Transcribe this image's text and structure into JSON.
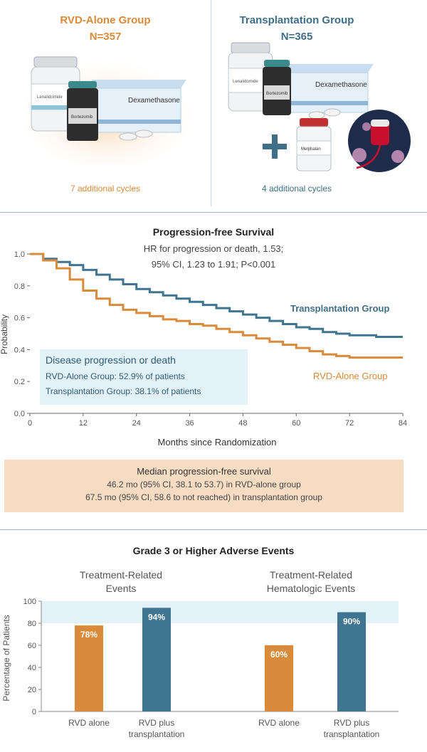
{
  "top": {
    "rvd_group": {
      "title": "RVD-Alone Group",
      "n": "N=357",
      "cycles": "7 additional cycles"
    },
    "tx_group": {
      "title": "Transplantation Group",
      "n": "N=365",
      "cycles": "4 additional cycles"
    },
    "labels": {
      "dexamethasone": "Dexamethasone",
      "lenalidomide": "Lenalidomide",
      "bortezomib": "Bortezomib",
      "melphalan": "Melphalan"
    }
  },
  "pfs": {
    "title": "Progression-free Survival",
    "hr_line1": "HR for progression or death, 1.53;",
    "hr_line2": "95% CI, 1.23 to 1.91; P<0.001",
    "box_title": "Disease progression or death",
    "box_line1": "RVD-Alone Group: 52.9% of patients",
    "box_line2": "Transplantation Group: 38.1% of patients",
    "median_title": "Median progression-free survival",
    "median_line1": "46.2 mo (95% CI, 38.1 to 53.7) in RVD-alone group",
    "median_line2": "67.5 mo (95% CI, 58.6 to not reached) in transplantation group"
  },
  "ae": {
    "title": "Grade 3 or Higher Adverse Events",
    "left_title_1": "Treatment-Related",
    "left_title_2": "Events",
    "right_title_1": "Treatment-Related",
    "right_title_2": "Hematologic Events"
  },
  "colors": {
    "orange": "#d98a3a",
    "blue": "#3f7590",
    "box_blue": "#e3f1f8",
    "box_orange": "#f7dcc4"
  },
  "chart_data": [
    {
      "type": "line",
      "xlabel": "Months since Randomization",
      "ylabel": "Probability",
      "xlim": [
        0,
        84
      ],
      "ylim": [
        0,
        1.0
      ],
      "xticks": [
        "0",
        "12",
        "24",
        "36",
        "48",
        "60",
        "72",
        "84"
      ],
      "yticks": [
        "0.0",
        "0.2",
        "0.4",
        "0.6",
        "0.8",
        "1.0"
      ],
      "series": [
        {
          "name": "Transplantation Group",
          "color": "#3f7590",
          "x": [
            0,
            3,
            6,
            9,
            12,
            15,
            18,
            21,
            24,
            27,
            30,
            33,
            36,
            39,
            42,
            45,
            48,
            51,
            54,
            57,
            60,
            63,
            66,
            69,
            72,
            75,
            78,
            81,
            84
          ],
          "y": [
            1.0,
            0.97,
            0.95,
            0.93,
            0.9,
            0.87,
            0.84,
            0.81,
            0.78,
            0.76,
            0.74,
            0.72,
            0.7,
            0.68,
            0.66,
            0.64,
            0.62,
            0.6,
            0.58,
            0.56,
            0.54,
            0.53,
            0.51,
            0.5,
            0.49,
            0.49,
            0.48,
            0.48,
            0.48
          ]
        },
        {
          "name": "RVD-Alone Group",
          "color": "#d98a3a",
          "x": [
            0,
            3,
            6,
            9,
            12,
            15,
            18,
            21,
            24,
            27,
            30,
            33,
            36,
            39,
            42,
            45,
            48,
            51,
            54,
            57,
            60,
            63,
            66,
            69,
            72,
            75,
            78,
            81,
            84
          ],
          "y": [
            1.0,
            0.96,
            0.91,
            0.84,
            0.77,
            0.72,
            0.68,
            0.65,
            0.63,
            0.61,
            0.59,
            0.58,
            0.56,
            0.55,
            0.53,
            0.51,
            0.49,
            0.47,
            0.45,
            0.43,
            0.41,
            0.39,
            0.37,
            0.36,
            0.35,
            0.35,
            0.35,
            0.35,
            0.35
          ]
        }
      ]
    },
    {
      "type": "bar",
      "title": "Treatment-Related Events",
      "ylabel": "Percentage of Patients",
      "ylim": [
        0,
        100
      ],
      "yticks": [
        "0",
        "20",
        "40",
        "60",
        "80",
        "100"
      ],
      "categories": [
        "RVD alone",
        "RVD plus transplantation"
      ],
      "values": [
        78,
        94
      ],
      "labels": [
        "78%",
        "94%"
      ],
      "colors": [
        "#d98a3a",
        "#3f7590"
      ]
    },
    {
      "type": "bar",
      "title": "Treatment-Related Hematologic Events",
      "ylim": [
        0,
        100
      ],
      "categories": [
        "RVD alone",
        "RVD plus transplantation"
      ],
      "values": [
        60,
        90
      ],
      "labels": [
        "60%",
        "90%"
      ],
      "colors": [
        "#d98a3a",
        "#3f7590"
      ]
    }
  ]
}
